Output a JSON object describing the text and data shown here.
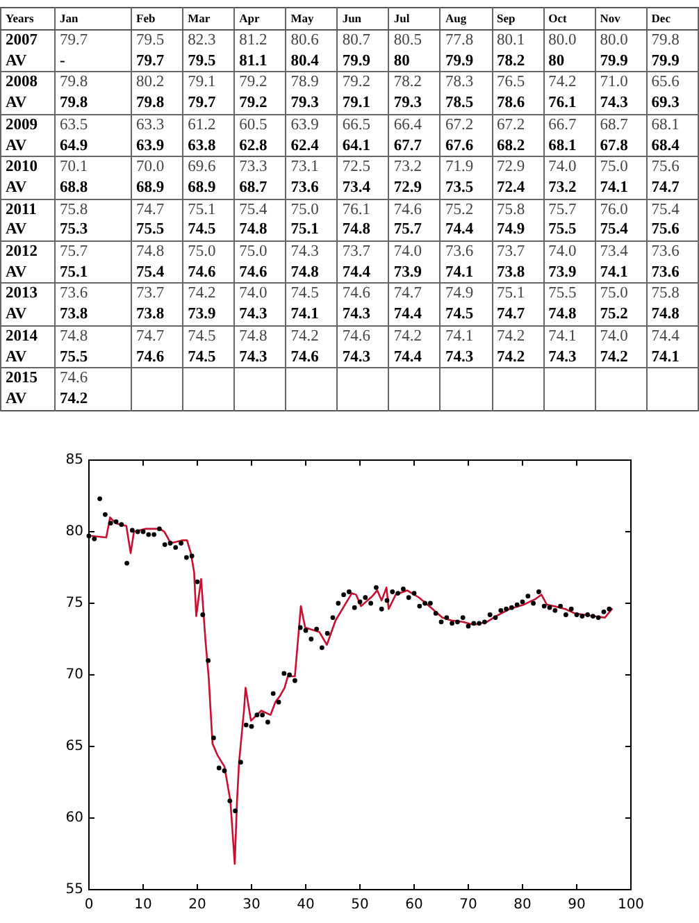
{
  "chart_data": [
    {
      "type": "heatmap",
      "ylabel": "Years",
      "categories": [
        "Jan",
        "Feb",
        "Mar",
        "Apr",
        "May",
        "Jun",
        "Jul",
        "Aug",
        "Sep",
        "Oct",
        "Nov",
        "Dec"
      ],
      "y_categories": [
        "2007",
        "AV",
        "2008",
        "AV",
        "2009",
        "AV",
        "2010",
        "AV",
        "2011",
        "AV",
        "2012",
        "AV",
        "2013",
        "AV",
        "2014",
        "AV",
        "2015",
        "AV"
      ],
      "cells": [
        [
          79.7,
          79.5,
          82.3,
          81.2,
          80.6,
          80.7,
          80.5,
          77.8,
          80.1,
          80.0,
          80.0,
          79.8
        ],
        [
          null,
          79.7,
          79.5,
          81.1,
          80.4,
          79.9,
          80,
          79.9,
          78.2,
          80,
          79.9,
          79.9
        ],
        [
          79.8,
          80.2,
          79.1,
          79.2,
          78.9,
          79.2,
          78.2,
          78.3,
          76.5,
          74.2,
          71.0,
          65.6
        ],
        [
          79.8,
          79.8,
          79.7,
          79.2,
          79.3,
          79.1,
          79.3,
          78.5,
          78.6,
          76.1,
          74.3,
          69.3
        ],
        [
          63.5,
          63.3,
          61.2,
          60.5,
          63.9,
          66.5,
          66.4,
          67.2,
          67.2,
          66.7,
          68.7,
          68.1
        ],
        [
          64.9,
          63.9,
          63.8,
          62.8,
          62.4,
          64.1,
          67.7,
          67.6,
          68.2,
          68.1,
          67.8,
          68.4
        ],
        [
          70.1,
          70.0,
          69.6,
          73.3,
          73.1,
          72.5,
          73.2,
          71.9,
          72.9,
          74.0,
          75.0,
          75.6
        ],
        [
          68.8,
          68.9,
          68.9,
          68.7,
          73.6,
          73.4,
          72.9,
          73.5,
          72.4,
          73.2,
          74.1,
          74.7
        ],
        [
          75.8,
          74.7,
          75.1,
          75.4,
          75.0,
          76.1,
          74.6,
          75.2,
          75.8,
          75.7,
          76.0,
          75.4
        ],
        [
          75.3,
          75.5,
          74.5,
          74.8,
          75.1,
          74.8,
          75.7,
          74.4,
          74.9,
          75.5,
          75.4,
          75.6
        ],
        [
          75.7,
          74.8,
          75.0,
          75.0,
          74.3,
          73.7,
          74.0,
          73.6,
          73.7,
          74.0,
          73.4,
          73.6
        ],
        [
          75.1,
          75.4,
          74.6,
          74.6,
          74.8,
          74.4,
          73.9,
          74.1,
          73.8,
          73.9,
          74.1,
          73.6
        ],
        [
          73.6,
          73.7,
          74.2,
          74.0,
          74.5,
          74.6,
          74.7,
          74.9,
          75.1,
          75.5,
          75.0,
          75.8
        ],
        [
          73.8,
          73.8,
          73.9,
          74.3,
          74.1,
          74.3,
          74.4,
          74.5,
          74.7,
          74.8,
          75.2,
          74.8
        ],
        [
          74.8,
          74.7,
          74.5,
          74.8,
          74.2,
          74.6,
          74.2,
          74.1,
          74.2,
          74.1,
          74.0,
          74.4
        ],
        [
          75.5,
          74.6,
          74.5,
          74.3,
          74.6,
          74.3,
          74.4,
          74.3,
          74.2,
          74.3,
          74.2,
          74.1
        ],
        [
          74.6,
          null,
          null,
          null,
          null,
          null,
          null,
          null,
          null,
          null,
          null,
          null
        ],
        [
          74.2,
          null,
          null,
          null,
          null,
          null,
          null,
          null,
          null,
          null,
          null,
          null
        ]
      ],
      "cell_labels": [
        [
          "79.7",
          "79.5",
          "82.3",
          "81.2",
          "80.6",
          "80.7",
          "80.5",
          "77.8",
          "80.1",
          "80.0",
          "80.0",
          "79.8"
        ],
        [
          "-",
          "79.7",
          "79.5",
          "81.1",
          "80.4",
          "79.9",
          "80",
          "79.9",
          "78.2",
          "80",
          "79.9",
          "79.9"
        ],
        [
          "79.8",
          "80.2",
          "79.1",
          "79.2",
          "78.9",
          "79.2",
          "78.2",
          "78.3",
          "76.5",
          "74.2",
          "71.0",
          "65.6"
        ],
        [
          "79.8",
          "79.8",
          "79.7",
          "79.2",
          "79.3",
          "79.1",
          "79.3",
          "78.5",
          "78.6",
          "76.1",
          "74.3",
          "69.3"
        ],
        [
          "63.5",
          "63.3",
          "61.2",
          "60.5",
          "63.9",
          "66.5",
          "66.4",
          "67.2",
          "67.2",
          "66.7",
          "68.7",
          "68.1"
        ],
        [
          "64.9",
          "63.9",
          "63.8",
          "62.8",
          "62.4",
          "64.1",
          "67.7",
          "67.6",
          "68.2",
          "68.1",
          "67.8",
          "68.4"
        ],
        [
          "70.1",
          "70.0",
          "69.6",
          "73.3",
          "73.1",
          "72.5",
          "73.2",
          "71.9",
          "72.9",
          "74.0",
          "75.0",
          "75.6"
        ],
        [
          "68.8",
          "68.9",
          "68.9",
          "68.7",
          "73.6",
          "73.4",
          "72.9",
          "73.5",
          "72.4",
          "73.2",
          "74.1",
          "74.7"
        ],
        [
          "75.8",
          "74.7",
          "75.1",
          "75.4",
          "75.0",
          "76.1",
          "74.6",
          "75.2",
          "75.8",
          "75.7",
          "76.0",
          "75.4"
        ],
        [
          "75.3",
          "75.5",
          "74.5",
          "74.8",
          "75.1",
          "74.8",
          "75.7",
          "74.4",
          "74.9",
          "75.5",
          "75.4",
          "75.6"
        ],
        [
          "75.7",
          "74.8",
          "75.0",
          "75.0",
          "74.3",
          "73.7",
          "74.0",
          "73.6",
          "73.7",
          "74.0",
          "73.4",
          "73.6"
        ],
        [
          "75.1",
          "75.4",
          "74.6",
          "74.6",
          "74.8",
          "74.4",
          "73.9",
          "74.1",
          "73.8",
          "73.9",
          "74.1",
          "73.6"
        ],
        [
          "73.6",
          "73.7",
          "74.2",
          "74.0",
          "74.5",
          "74.6",
          "74.7",
          "74.9",
          "75.1",
          "75.5",
          "75.0",
          "75.8"
        ],
        [
          "73.8",
          "73.8",
          "73.9",
          "74.3",
          "74.1",
          "74.3",
          "74.4",
          "74.5",
          "74.7",
          "74.8",
          "75.2",
          "74.8"
        ],
        [
          "74.8",
          "74.7",
          "74.5",
          "74.8",
          "74.2",
          "74.6",
          "74.2",
          "74.1",
          "74.2",
          "74.1",
          "74.0",
          "74.4"
        ],
        [
          "75.5",
          "74.6",
          "74.5",
          "74.3",
          "74.6",
          "74.3",
          "74.4",
          "74.3",
          "74.2",
          "74.3",
          "74.2",
          "74.1"
        ],
        [
          "74.6",
          null,
          null,
          null,
          null,
          null,
          null,
          null,
          null,
          null,
          null,
          null
        ],
        [
          "74.2",
          null,
          null,
          null,
          null,
          null,
          null,
          null,
          null,
          null,
          null,
          null
        ]
      ]
    },
    {
      "type": "line",
      "xlim": [
        0,
        100
      ],
      "xticks": [
        0,
        10,
        20,
        30,
        40,
        50,
        60,
        70,
        80,
        90,
        100
      ],
      "ylim": [
        55,
        85
      ],
      "yticks": [
        55,
        60,
        65,
        70,
        75,
        80,
        85
      ],
      "series": [
        {
          "type": "scatter",
          "color": "#000000",
          "x": [
            0,
            1,
            2,
            3,
            4,
            5,
            6,
            7,
            8,
            9,
            10,
            11,
            12,
            13,
            14,
            15,
            16,
            17,
            18,
            19,
            20,
            21,
            22,
            23,
            24,
            25,
            26,
            27,
            28,
            29,
            30,
            31,
            32,
            33,
            34,
            35,
            36,
            37,
            38,
            39,
            40,
            41,
            42,
            43,
            44,
            45,
            46,
            47,
            48,
            49,
            50,
            51,
            52,
            53,
            54,
            55,
            56,
            57,
            58,
            59,
            60,
            61,
            62,
            63,
            64,
            65,
            66,
            67,
            68,
            69,
            70,
            71,
            72,
            73,
            74,
            75,
            76,
            77,
            78,
            79,
            80,
            81,
            82,
            83,
            84,
            85,
            86,
            87,
            88,
            89,
            90,
            91,
            92,
            93,
            94,
            95,
            96
          ],
          "values": [
            79.7,
            79.5,
            82.3,
            81.2,
            80.6,
            80.7,
            80.5,
            77.8,
            80.1,
            80.0,
            80.0,
            79.8,
            79.8,
            80.2,
            79.1,
            79.2,
            78.9,
            79.2,
            78.2,
            78.3,
            76.5,
            74.2,
            71.0,
            65.6,
            63.5,
            63.3,
            61.2,
            60.5,
            63.9,
            66.5,
            66.4,
            67.2,
            67.2,
            66.7,
            68.7,
            68.1,
            70.1,
            70.0,
            69.6,
            73.3,
            73.1,
            72.5,
            73.2,
            71.9,
            72.9,
            74.0,
            75.0,
            75.6,
            75.8,
            74.7,
            75.1,
            75.4,
            75.0,
            76.1,
            74.6,
            75.2,
            75.8,
            75.7,
            76.0,
            75.4,
            75.7,
            74.8,
            75.0,
            75.0,
            74.3,
            73.7,
            74.0,
            73.6,
            73.7,
            74.0,
            73.4,
            73.6,
            73.6,
            73.7,
            74.2,
            74.0,
            74.5,
            74.6,
            74.7,
            74.9,
            75.1,
            75.5,
            75.0,
            75.8,
            74.8,
            74.7,
            74.5,
            74.8,
            74.2,
            74.6,
            74.2,
            74.1,
            74.2,
            74.1,
            74.0,
            74.4,
            74.6
          ]
        },
        {
          "type": "line",
          "color": "#c8102e",
          "x": [
            0.6,
            3.2,
            3.9,
            4.9,
            5.9,
            6.9,
            7.7,
            8.3,
            10.5,
            13.1,
            13.9,
            15.1,
            17.3,
            18.1,
            18.8,
            19.4,
            19.8,
            20.7,
            21.5,
            22.1,
            22.8,
            23.7,
            25.0,
            26.1,
            26.9,
            27.3,
            27.7,
            28.6,
            28.9,
            29.9,
            31.8,
            33.5,
            34.4,
            35.2,
            36.1,
            36.7,
            38.0,
            39.1,
            39.9,
            42.5,
            43.9,
            45.5,
            48.5,
            49.3,
            50.2,
            52.3,
            53.2,
            54.0,
            54.9,
            55.3,
            56.6,
            58.7,
            60.9,
            63.4,
            65.2,
            66.9,
            69.0,
            71.0,
            73.4,
            75.1,
            77.6,
            80.2,
            82.4,
            83.5,
            84.5,
            85.8,
            87.9,
            89.6,
            91.4,
            93.1,
            95.2,
            96.5
          ],
          "values": [
            79.7,
            79.6,
            81.0,
            80.6,
            80.5,
            80.4,
            78.5,
            80.0,
            80.2,
            80.2,
            80.0,
            79.2,
            79.4,
            79.4,
            78.5,
            77.2,
            74.1,
            76.7,
            72.4,
            69.8,
            65.2,
            64.4,
            63.6,
            61.2,
            56.8,
            61.0,
            63.9,
            67.5,
            69.1,
            66.8,
            67.5,
            67.2,
            68.1,
            68.5,
            69.1,
            69.9,
            69.9,
            74.8,
            73.3,
            73.0,
            72.1,
            73.8,
            75.7,
            75.6,
            74.8,
            75.5,
            75.9,
            75.2,
            76.1,
            74.6,
            75.6,
            75.9,
            75.4,
            74.6,
            74.0,
            73.8,
            73.7,
            73.5,
            73.7,
            74.1,
            74.6,
            74.9,
            75.3,
            75.6,
            74.9,
            74.8,
            74.6,
            74.3,
            74.2,
            74.1,
            74.0,
            74.6
          ]
        }
      ]
    }
  ]
}
